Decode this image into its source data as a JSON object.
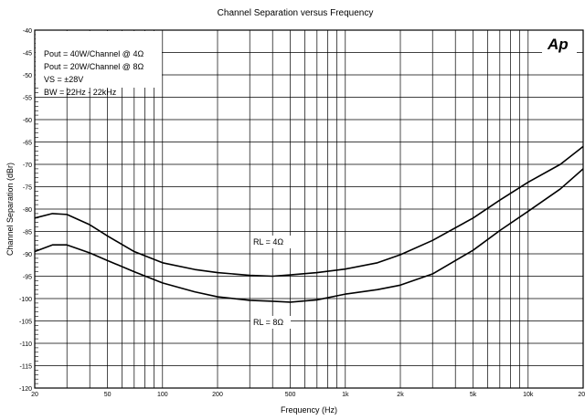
{
  "chart_data": {
    "type": "line",
    "title": "Channel Separation versus Frequency",
    "xlabel": "Frequency (Hz)",
    "ylabel": "Channel Separation (dBr)",
    "x_scale": "log",
    "xlim": [
      20,
      20000
    ],
    "ylim": [
      -120,
      -40
    ],
    "grid": true,
    "x_ticks": [
      {
        "value": 20,
        "label": "20"
      },
      {
        "value": 50,
        "label": "50"
      },
      {
        "value": 100,
        "label": "100"
      },
      {
        "value": 200,
        "label": "200"
      },
      {
        "value": 500,
        "label": "500"
      },
      {
        "value": 1000,
        "label": "1k"
      },
      {
        "value": 2000,
        "label": "2k"
      },
      {
        "value": 5000,
        "label": "5k"
      },
      {
        "value": 10000,
        "label": "10k"
      },
      {
        "value": 20000,
        "label": "20k"
      }
    ],
    "y_ticks": [
      {
        "value": -40,
        "label": "-40"
      },
      {
        "value": -45,
        "label": "-45"
      },
      {
        "value": -50,
        "label": "-50"
      },
      {
        "value": -55,
        "label": "-55"
      },
      {
        "value": -60,
        "label": "-60"
      },
      {
        "value": -65,
        "label": "-65"
      },
      {
        "value": -70,
        "label": "-70"
      },
      {
        "value": -75,
        "label": "-75"
      },
      {
        "value": -80,
        "label": "-80"
      },
      {
        "value": -85,
        "label": "-85"
      },
      {
        "value": -90,
        "label": "-90"
      },
      {
        "value": -95,
        "label": "-95"
      },
      {
        "value": -100,
        "label": "-100"
      },
      {
        "value": -105,
        "label": "-105"
      },
      {
        "value": -110,
        "label": "-110"
      },
      {
        "value": -115,
        "label": "-115"
      },
      {
        "value": -120,
        "label": "-120"
      }
    ],
    "series": [
      {
        "name": "RL = 4Ω",
        "x": [
          20,
          25,
          30,
          40,
          50,
          70,
          100,
          150,
          200,
          300,
          400,
          500,
          700,
          1000,
          1500,
          2000,
          3000,
          5000,
          7000,
          10000,
          15000,
          20000
        ],
        "y": [
          -82,
          -81,
          -81.2,
          -83.5,
          -86,
          -89.5,
          -92,
          -93.5,
          -94.2,
          -94.8,
          -95,
          -94.7,
          -94.2,
          -93.4,
          -92,
          -90.2,
          -87,
          -82,
          -78,
          -74,
          -70,
          -66
        ]
      },
      {
        "name": "RL = 8Ω",
        "x": [
          20,
          25,
          30,
          40,
          50,
          70,
          100,
          150,
          200,
          300,
          400,
          500,
          700,
          1000,
          1500,
          2000,
          3000,
          5000,
          7000,
          10000,
          15000,
          20000
        ],
        "y": [
          -89.5,
          -88,
          -88,
          -89.8,
          -91.5,
          -94,
          -96.5,
          -98.5,
          -99.6,
          -100.4,
          -100.6,
          -100.8,
          -100.3,
          -99,
          -98,
          -97,
          -94.5,
          -89.2,
          -84.8,
          -80.5,
          -75.5,
          -71
        ]
      }
    ],
    "annotations": {
      "legend_lines": [
        "Pout = 40W/Channel @ 4Ω",
        "Pout = 20W/Channel @ 8Ω",
        "VS = ±28V",
        "BW = 22Hz - 22kHz"
      ],
      "curve_label_4": "RL = 4Ω",
      "curve_label_8": "RL = 8Ω",
      "logo": "Ap"
    }
  }
}
